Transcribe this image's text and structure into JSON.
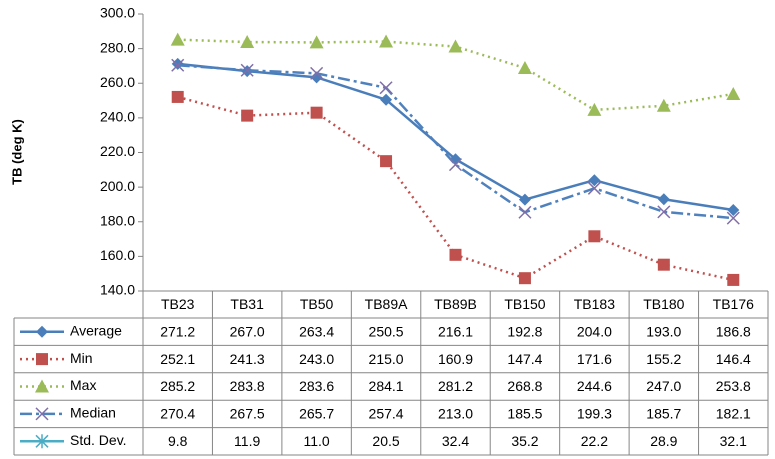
{
  "chart_data": {
    "type": "line",
    "y_label": "TB (deg K)",
    "categories": [
      "TB23",
      "TB31",
      "TB50",
      "TB89A",
      "TB89B",
      "TB150",
      "TB183",
      "TB180",
      "TB176"
    ],
    "ylim": [
      140,
      300
    ],
    "yticks": [
      {
        "value": 140,
        "label": "140.0"
      },
      {
        "value": 160,
        "label": "160.0"
      },
      {
        "value": 180,
        "label": "180.0"
      },
      {
        "value": 200,
        "label": "200.0"
      },
      {
        "value": 220,
        "label": "220.0"
      },
      {
        "value": 240,
        "label": "240.0"
      },
      {
        "value": 260,
        "label": "260.0"
      },
      {
        "value": 280,
        "label": "280.0"
      },
      {
        "value": 300,
        "label": "300.0"
      }
    ],
    "series": [
      {
        "name": "Average",
        "color": "#4a7ebb",
        "marker": "diamond",
        "line_style": "solid",
        "values": [
          271.2,
          267,
          263.4,
          250.5,
          216.1,
          192.8,
          204,
          193,
          186.8
        ],
        "value_labels": [
          "271.2",
          "267.0",
          "263.4",
          "250.5",
          "216.1",
          "192.8",
          "204.0",
          "193.0",
          "186.8"
        ]
      },
      {
        "name": "Min",
        "color": "#c0504d",
        "marker": "square",
        "line_style": "dot",
        "values": [
          252.1,
          241.3,
          243,
          215,
          160.9,
          147.4,
          171.6,
          155.2,
          146.4
        ],
        "value_labels": [
          "252.1",
          "241.3",
          "243.0",
          "215.0",
          "160.9",
          "147.4",
          "171.6",
          "155.2",
          "146.4"
        ]
      },
      {
        "name": "Max",
        "color": "#9bbb59",
        "marker": "triangle",
        "line_style": "dot",
        "values": [
          285.2,
          283.8,
          283.6,
          284.1,
          281.2,
          268.8,
          244.6,
          247,
          253.8
        ],
        "value_labels": [
          "285.2",
          "283.8",
          "283.6",
          "284.1",
          "281.2",
          "268.8",
          "244.6",
          "247.0",
          "253.8"
        ]
      },
      {
        "name": "Median",
        "color": "#4f81bd",
        "marker": "x",
        "line_style": "dashdot",
        "values": [
          270.4,
          267.5,
          265.7,
          257.4,
          213,
          185.5,
          199.3,
          185.7,
          182.1
        ],
        "value_labels": [
          "270.4",
          "267.5",
          "265.7",
          "257.4",
          "213.0",
          "185.5",
          "199.3",
          "185.7",
          "182.1"
        ]
      },
      {
        "name": "Std. Dev.",
        "color": "#4bacc6",
        "marker": "star",
        "line_style": "solid",
        "values": [
          9.8,
          11.9,
          11,
          20.5,
          32.4,
          35.2,
          22.2,
          28.9,
          32.1
        ],
        "value_labels": [
          "9.8",
          "11.9",
          "11.0",
          "20.5",
          "32.4",
          "35.2",
          "22.2",
          "28.9",
          "32.1"
        ]
      }
    ]
  }
}
